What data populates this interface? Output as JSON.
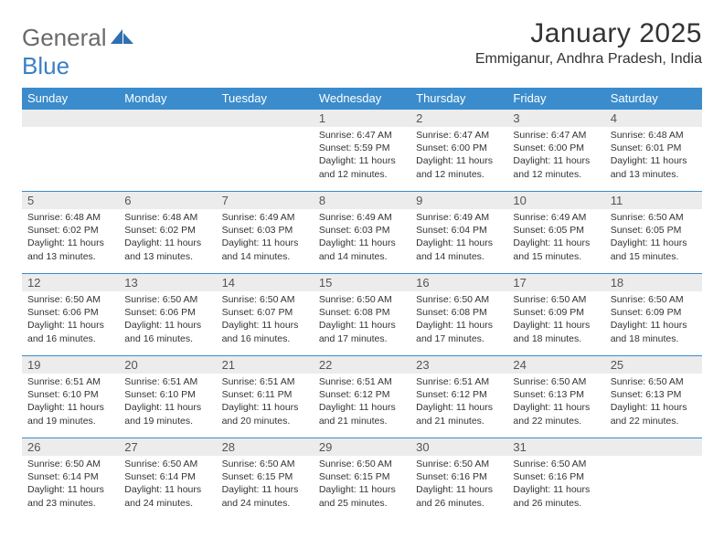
{
  "logo": {
    "text1": "General",
    "text2": "Blue"
  },
  "header": {
    "month_title": "January 2025",
    "location": "Emmiganur, Andhra Pradesh, India"
  },
  "colors": {
    "header_bg": "#3b8ccc",
    "header_text": "#ffffff",
    "daynum_bg": "#ececec",
    "border": "#3b8ccc",
    "logo_gray": "#6a6a6a",
    "logo_blue": "#3b7fc4",
    "text": "#333333"
  },
  "days_of_week": [
    "Sunday",
    "Monday",
    "Tuesday",
    "Wednesday",
    "Thursday",
    "Friday",
    "Saturday"
  ],
  "weeks": [
    [
      {
        "empty": true
      },
      {
        "empty": true
      },
      {
        "empty": true
      },
      {
        "day": "1",
        "sunrise": "Sunrise: 6:47 AM",
        "sunset": "Sunset: 5:59 PM",
        "daylight": "Daylight: 11 hours and 12 minutes."
      },
      {
        "day": "2",
        "sunrise": "Sunrise: 6:47 AM",
        "sunset": "Sunset: 6:00 PM",
        "daylight": "Daylight: 11 hours and 12 minutes."
      },
      {
        "day": "3",
        "sunrise": "Sunrise: 6:47 AM",
        "sunset": "Sunset: 6:00 PM",
        "daylight": "Daylight: 11 hours and 12 minutes."
      },
      {
        "day": "4",
        "sunrise": "Sunrise: 6:48 AM",
        "sunset": "Sunset: 6:01 PM",
        "daylight": "Daylight: 11 hours and 13 minutes."
      }
    ],
    [
      {
        "day": "5",
        "sunrise": "Sunrise: 6:48 AM",
        "sunset": "Sunset: 6:02 PM",
        "daylight": "Daylight: 11 hours and 13 minutes."
      },
      {
        "day": "6",
        "sunrise": "Sunrise: 6:48 AM",
        "sunset": "Sunset: 6:02 PM",
        "daylight": "Daylight: 11 hours and 13 minutes."
      },
      {
        "day": "7",
        "sunrise": "Sunrise: 6:49 AM",
        "sunset": "Sunset: 6:03 PM",
        "daylight": "Daylight: 11 hours and 14 minutes."
      },
      {
        "day": "8",
        "sunrise": "Sunrise: 6:49 AM",
        "sunset": "Sunset: 6:03 PM",
        "daylight": "Daylight: 11 hours and 14 minutes."
      },
      {
        "day": "9",
        "sunrise": "Sunrise: 6:49 AM",
        "sunset": "Sunset: 6:04 PM",
        "daylight": "Daylight: 11 hours and 14 minutes."
      },
      {
        "day": "10",
        "sunrise": "Sunrise: 6:49 AM",
        "sunset": "Sunset: 6:05 PM",
        "daylight": "Daylight: 11 hours and 15 minutes."
      },
      {
        "day": "11",
        "sunrise": "Sunrise: 6:50 AM",
        "sunset": "Sunset: 6:05 PM",
        "daylight": "Daylight: 11 hours and 15 minutes."
      }
    ],
    [
      {
        "day": "12",
        "sunrise": "Sunrise: 6:50 AM",
        "sunset": "Sunset: 6:06 PM",
        "daylight": "Daylight: 11 hours and 16 minutes."
      },
      {
        "day": "13",
        "sunrise": "Sunrise: 6:50 AM",
        "sunset": "Sunset: 6:06 PM",
        "daylight": "Daylight: 11 hours and 16 minutes."
      },
      {
        "day": "14",
        "sunrise": "Sunrise: 6:50 AM",
        "sunset": "Sunset: 6:07 PM",
        "daylight": "Daylight: 11 hours and 16 minutes."
      },
      {
        "day": "15",
        "sunrise": "Sunrise: 6:50 AM",
        "sunset": "Sunset: 6:08 PM",
        "daylight": "Daylight: 11 hours and 17 minutes."
      },
      {
        "day": "16",
        "sunrise": "Sunrise: 6:50 AM",
        "sunset": "Sunset: 6:08 PM",
        "daylight": "Daylight: 11 hours and 17 minutes."
      },
      {
        "day": "17",
        "sunrise": "Sunrise: 6:50 AM",
        "sunset": "Sunset: 6:09 PM",
        "daylight": "Daylight: 11 hours and 18 minutes."
      },
      {
        "day": "18",
        "sunrise": "Sunrise: 6:50 AM",
        "sunset": "Sunset: 6:09 PM",
        "daylight": "Daylight: 11 hours and 18 minutes."
      }
    ],
    [
      {
        "day": "19",
        "sunrise": "Sunrise: 6:51 AM",
        "sunset": "Sunset: 6:10 PM",
        "daylight": "Daylight: 11 hours and 19 minutes."
      },
      {
        "day": "20",
        "sunrise": "Sunrise: 6:51 AM",
        "sunset": "Sunset: 6:10 PM",
        "daylight": "Daylight: 11 hours and 19 minutes."
      },
      {
        "day": "21",
        "sunrise": "Sunrise: 6:51 AM",
        "sunset": "Sunset: 6:11 PM",
        "daylight": "Daylight: 11 hours and 20 minutes."
      },
      {
        "day": "22",
        "sunrise": "Sunrise: 6:51 AM",
        "sunset": "Sunset: 6:12 PM",
        "daylight": "Daylight: 11 hours and 21 minutes."
      },
      {
        "day": "23",
        "sunrise": "Sunrise: 6:51 AM",
        "sunset": "Sunset: 6:12 PM",
        "daylight": "Daylight: 11 hours and 21 minutes."
      },
      {
        "day": "24",
        "sunrise": "Sunrise: 6:50 AM",
        "sunset": "Sunset: 6:13 PM",
        "daylight": "Daylight: 11 hours and 22 minutes."
      },
      {
        "day": "25",
        "sunrise": "Sunrise: 6:50 AM",
        "sunset": "Sunset: 6:13 PM",
        "daylight": "Daylight: 11 hours and 22 minutes."
      }
    ],
    [
      {
        "day": "26",
        "sunrise": "Sunrise: 6:50 AM",
        "sunset": "Sunset: 6:14 PM",
        "daylight": "Daylight: 11 hours and 23 minutes."
      },
      {
        "day": "27",
        "sunrise": "Sunrise: 6:50 AM",
        "sunset": "Sunset: 6:14 PM",
        "daylight": "Daylight: 11 hours and 24 minutes."
      },
      {
        "day": "28",
        "sunrise": "Sunrise: 6:50 AM",
        "sunset": "Sunset: 6:15 PM",
        "daylight": "Daylight: 11 hours and 24 minutes."
      },
      {
        "day": "29",
        "sunrise": "Sunrise: 6:50 AM",
        "sunset": "Sunset: 6:15 PM",
        "daylight": "Daylight: 11 hours and 25 minutes."
      },
      {
        "day": "30",
        "sunrise": "Sunrise: 6:50 AM",
        "sunset": "Sunset: 6:16 PM",
        "daylight": "Daylight: 11 hours and 26 minutes."
      },
      {
        "day": "31",
        "sunrise": "Sunrise: 6:50 AM",
        "sunset": "Sunset: 6:16 PM",
        "daylight": "Daylight: 11 hours and 26 minutes."
      },
      {
        "empty": true
      }
    ]
  ]
}
